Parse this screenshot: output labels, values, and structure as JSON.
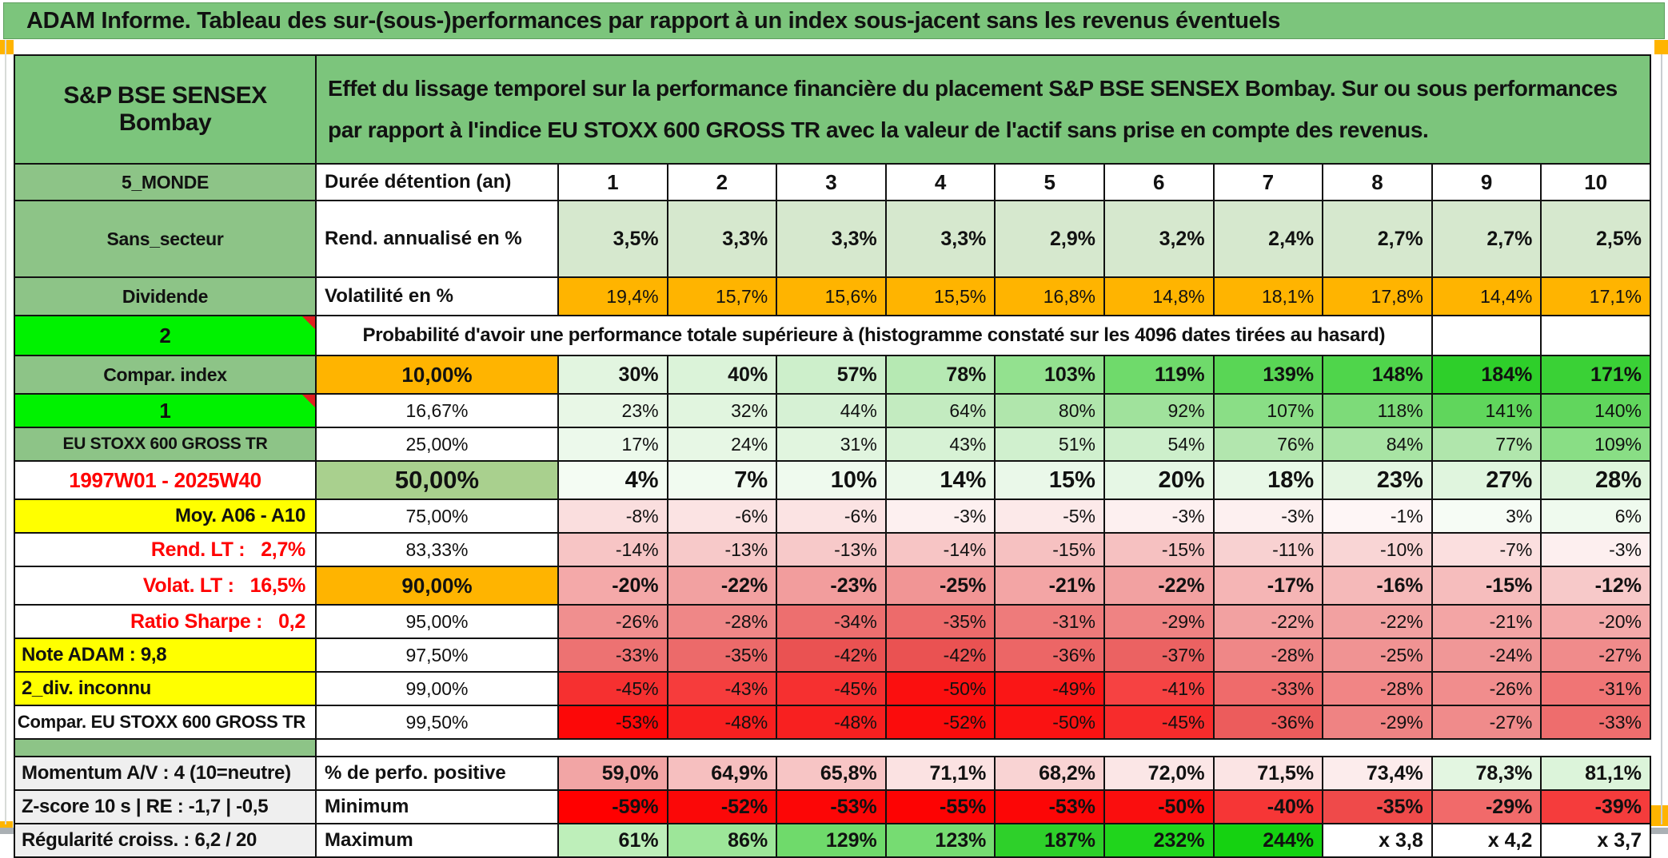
{
  "title": "ADAM Informe. Tableau des sur-(sous-)performances par rapport à un index sous-jacent sans les revenus éventuels",
  "sheet": {
    "asset_name": "S&P BSE SENSEX Bombay",
    "description": "Effet du lissage temporel sur la performance financière du placement S&P BSE SENSEX Bombay. Sur ou sous performances par rapport à l'indice EU STOXX 600 GROSS TR avec la valeur de l'actif sans prise en compte des revenus."
  },
  "colors": {
    "header_green": "#7CC57C",
    "label_green": "#8DC487",
    "bright_green": "#00F200",
    "accent_orange": "#FFB400",
    "accent_yellow": "#FFFF00",
    "median_green": "#A9D08E",
    "return_row_green": "#D6E8CE",
    "negative_red": "#FF0000",
    "gray_label": "#EFEFEF"
  },
  "table": {
    "rows": [
      {
        "k": "duration",
        "a": "5_MONDE",
        "a_style": "sage",
        "b": "Durée détention (an)",
        "b_style": "b-left",
        "row_style": "r-duration",
        "values": [
          "1",
          "2",
          "3",
          "4",
          "5",
          "6",
          "7",
          "8",
          "9",
          "10"
        ],
        "bgs": [
          "#FFFFFF",
          "#FFFFFF",
          "#FFFFFF",
          "#FFFFFF",
          "#FFFFFF",
          "#FFFFFF",
          "#FFFFFF",
          "#FFFFFF",
          "#FFFFFF",
          "#FFFFFF"
        ]
      },
      {
        "k": "annual-return",
        "a": "Sans_secteur",
        "a_style": "sage",
        "b": "Rend. annualisé en %",
        "b_style": "b-left",
        "row_style": "r-bold",
        "values": [
          "3,5%",
          "3,3%",
          "3,3%",
          "3,3%",
          "2,9%",
          "3,2%",
          "2,4%",
          "2,7%",
          "2,7%",
          "2,5%"
        ],
        "bgs": [
          "#D6E8CE",
          "#D6E8CE",
          "#D6E8CE",
          "#D6E8CE",
          "#D6E8CE",
          "#D6E8CE",
          "#D6E8CE",
          "#D6E8CE",
          "#D6E8CE",
          "#D6E8CE"
        ]
      },
      {
        "k": "volatility",
        "a": "Dividende",
        "a_style": "sage",
        "b": "Volatilité en %",
        "b_style": "b-left",
        "row_style": "r-norm",
        "values": [
          "19,4%",
          "15,7%",
          "15,6%",
          "15,5%",
          "16,8%",
          "14,8%",
          "18,1%",
          "17,8%",
          "14,4%",
          "17,1%"
        ],
        "bgs": [
          "#FFB400",
          "#FFB400",
          "#FFB400",
          "#FFB400",
          "#FFB400",
          "#FFB400",
          "#FFB400",
          "#FFB400",
          "#FFB400",
          "#FFB400"
        ]
      },
      {
        "k": "probability-caption",
        "type": "span",
        "a": "2",
        "a_style": "bright marker",
        "span": "Probabilité d'avoir une performance totale supérieure à (histogramme constaté sur les 4096 dates tirées au hasard)"
      },
      {
        "k": "p10",
        "a": "Compar. index",
        "a_style": "sage",
        "b": "10,00%",
        "b_style": "b-center b-bold",
        "b_bg": "#FFB400",
        "row_style": "r-bold",
        "values": [
          "30%",
          "40%",
          "57%",
          "78%",
          "103%",
          "119%",
          "139%",
          "148%",
          "184%",
          "171%"
        ],
        "bgs": [
          "#E2F5E0",
          "#DBF3D9",
          "#CDEFCB",
          "#B6E9B3",
          "#93E18F",
          "#6FDA6B",
          "#59D655",
          "#4FD54B",
          "#2ECF2A",
          "#3AD136"
        ]
      },
      {
        "k": "p16",
        "a": "1",
        "a_style": "bright marker",
        "b": "16,67%",
        "b_style": "b-center",
        "row_style": "r-norm",
        "values": [
          "23%",
          "32%",
          "44%",
          "64%",
          "80%",
          "92%",
          "107%",
          "118%",
          "141%",
          "140%"
        ],
        "bgs": [
          "#E8F7E6",
          "#E1F5DF",
          "#D6F1D4",
          "#C3EBC0",
          "#B0E6AC",
          "#A0E29C",
          "#8ADE86",
          "#7DDB79",
          "#60D65C",
          "#61D65D"
        ]
      },
      {
        "k": "p25",
        "a": "EU STOXX 600 GROSS TR",
        "a_style": "sage small",
        "b": "25,00%",
        "b_style": "b-center",
        "row_style": "r-norm",
        "values": [
          "17%",
          "24%",
          "31%",
          "43%",
          "51%",
          "54%",
          "76%",
          "84%",
          "77%",
          "109%"
        ],
        "bgs": [
          "#ECF9EB",
          "#E7F7E5",
          "#E1F5DF",
          "#D7F2D5",
          "#D0F0CE",
          "#CDEFCB",
          "#B2E6AE",
          "#A8E4A4",
          "#B0E6AC",
          "#89DE85"
        ]
      },
      {
        "k": "p50",
        "a": "1997W01 - 2025W40",
        "a_style": "white redtext center",
        "b": "50,00%",
        "b_style": "b-center b-big",
        "b_bg": "#A9D08E",
        "row_style": "r-big",
        "values": [
          "4%",
          "7%",
          "10%",
          "14%",
          "15%",
          "20%",
          "18%",
          "23%",
          "27%",
          "28%"
        ],
        "bgs": [
          "#F4FCF3",
          "#F1FBF0",
          "#EFFAEE",
          "#EBF9EA",
          "#EAF8E9",
          "#E6F7E5",
          "#E8F8E7",
          "#E4F6E2",
          "#E0F5DE",
          "#DFF5DD"
        ]
      },
      {
        "k": "p75",
        "a": "Moy. A06 - A10",
        "a_style": "yellow right",
        "b": "75,00%",
        "b_style": "b-center",
        "row_style": "r-norm",
        "values": [
          "-8%",
          "-6%",
          "-6%",
          "-3%",
          "-5%",
          "-3%",
          "-3%",
          "-1%",
          "3%",
          "6%"
        ],
        "bgs": [
          "#FADEDE",
          "#FBE3E3",
          "#FBE3E3",
          "#FDF0F0",
          "#FCE9E9",
          "#FDF0F0",
          "#FDF0F0",
          "#FEF6F6",
          "#F6FCF5",
          "#EFFAEE"
        ]
      },
      {
        "k": "p83",
        "a": "Rend. LT :   2,7%",
        "a_style": "white redtext right",
        "b": "83,33%",
        "b_style": "b-center",
        "row_style": "r-norm",
        "values": [
          "-14%",
          "-13%",
          "-13%",
          "-14%",
          "-15%",
          "-15%",
          "-11%",
          "-10%",
          "-7%",
          "-3%"
        ],
        "bgs": [
          "#F7C5C5",
          "#F7C9C9",
          "#F7C9C9",
          "#F7C5C5",
          "#F6C1C1",
          "#F6C1C1",
          "#F8D1D1",
          "#F9D5D5",
          "#FBDFDF",
          "#FDEFEF"
        ]
      },
      {
        "k": "p90",
        "a": "Volat. LT :   16,5%",
        "a_style": "white redtext right",
        "b": "90,00%",
        "b_style": "b-center b-bold",
        "b_bg": "#FFB400",
        "row_style": "r-bold",
        "values": [
          "-20%",
          "-22%",
          "-23%",
          "-25%",
          "-21%",
          "-22%",
          "-17%",
          "-16%",
          "-15%",
          "-12%"
        ],
        "bgs": [
          "#F4A9A9",
          "#F2A1A1",
          "#F29D9D",
          "#F19595",
          "#F3A5A5",
          "#F2A1A1",
          "#F5B5B5",
          "#F5B9B9",
          "#F6BDBD",
          "#F7C9C9"
        ]
      },
      {
        "k": "p95",
        "a": "Ratio Sharpe :   0,2",
        "a_style": "white redtext right",
        "b": "95,00%",
        "b_style": "b-center",
        "row_style": "r-norm",
        "values": [
          "-26%",
          "-28%",
          "-34%",
          "-35%",
          "-31%",
          "-29%",
          "-22%",
          "-22%",
          "-21%",
          "-20%"
        ],
        "bgs": [
          "#F08F8F",
          "#EF8787",
          "#ED6F6F",
          "#ED6B6B",
          "#EE7B7B",
          "#EF8383",
          "#F2A1A1",
          "#F2A1A1",
          "#F3A5A5",
          "#F4A9A9"
        ]
      },
      {
        "k": "p975",
        "a": "Note ADAM : 9,8",
        "a_style": "yellow left",
        "b": "97,50%",
        "b_style": "b-center",
        "row_style": "r-norm",
        "values": [
          "-33%",
          "-35%",
          "-42%",
          "-42%",
          "-36%",
          "-37%",
          "-28%",
          "-25%",
          "-24%",
          "-27%"
        ],
        "bgs": [
          "#ED7272",
          "#EC6A6A",
          "#EA5252",
          "#EA5252",
          "#EC6666",
          "#EB6262",
          "#EF8787",
          "#F09393",
          "#F09797",
          "#F08B8B"
        ]
      },
      {
        "k": "p99",
        "a": "2_div. inconnu",
        "a_style": "yellow left",
        "b": "99,00%",
        "b_style": "b-center",
        "row_style": "r-norm",
        "values": [
          "-45%",
          "-43%",
          "-45%",
          "-50%",
          "-49%",
          "-41%",
          "-33%",
          "-28%",
          "-26%",
          "-31%"
        ],
        "bgs": [
          "#F63030",
          "#F63C3C",
          "#F63030",
          "#FB0F0F",
          "#FA1616",
          "#F64242",
          "#EF6B6B",
          "#F18585",
          "#F18D8D",
          "#F07575"
        ]
      },
      {
        "k": "p995",
        "a": "Compar. EU STOXX 600 GROSS TR",
        "a_style": "white right smallbold",
        "b": "99,50%",
        "b_style": "b-center",
        "row_style": "r-norm",
        "values": [
          "-53%",
          "-48%",
          "-48%",
          "-52%",
          "-50%",
          "-45%",
          "-36%",
          "-29%",
          "-27%",
          "-33%"
        ],
        "bgs": [
          "#FC0808",
          "#F82020",
          "#F82020",
          "#FB0C0C",
          "#FA1212",
          "#F72C2C",
          "#EC5C5C",
          "#EF8383",
          "#F08B8B",
          "#EE6D6D"
        ]
      },
      {
        "k": "spacer",
        "type": "spacer",
        "a_style": "sage"
      },
      {
        "k": "pct-positive",
        "a": "Momentum A/V : 4 (10=neutre)",
        "a_style": "gray",
        "b": "% de perfo. positive",
        "b_style": "b-left",
        "row_style": "r-bold",
        "values": [
          "59,0%",
          "64,9%",
          "65,8%",
          "71,1%",
          "68,2%",
          "72,0%",
          "71,5%",
          "73,4%",
          "78,3%",
          "81,1%"
        ],
        "bgs": [
          "#F2A5A5",
          "#F6BFBF",
          "#F7C5C5",
          "#FBE2E2",
          "#F9D3D3",
          "#FBE6E6",
          "#FBE4E4",
          "#FCECEC",
          "#E3F6E1",
          "#DCF4DA"
        ]
      },
      {
        "k": "minimum",
        "a": "Z-score 10 s | RE : -1,7 | -0,5",
        "a_style": "gray",
        "b": "Minimum",
        "b_style": "b-left",
        "row_style": "r-bold",
        "values": [
          "-59%",
          "-52%",
          "-53%",
          "-55%",
          "-53%",
          "-50%",
          "-40%",
          "-35%",
          "-29%",
          "-39%"
        ],
        "bgs": [
          "#FF0000",
          "#FB0808",
          "#FC0606",
          "#FD0303",
          "#FC0606",
          "#FA0E0E",
          "#F63636",
          "#EF4A4A",
          "#F16A6A",
          "#F53C3C"
        ]
      },
      {
        "k": "maximum",
        "a": "Régularité croiss. : 6,2 / 20",
        "a_style": "gray",
        "b": "Maximum",
        "b_style": "b-left",
        "row_style": "r-bold",
        "values": [
          "61%",
          "86%",
          "129%",
          "123%",
          "187%",
          "232%",
          "244%",
          "x 3,8",
          "x 4,2",
          "x 3,7"
        ],
        "bgs": [
          "#BEEFBA",
          "#9DE699",
          "#6FDA6B",
          "#76DC72",
          "#2ED02A",
          "#20D51C",
          "#15D211",
          "#FFFFFF",
          "#FFFFFF",
          "#FFFFFF"
        ]
      }
    ]
  }
}
